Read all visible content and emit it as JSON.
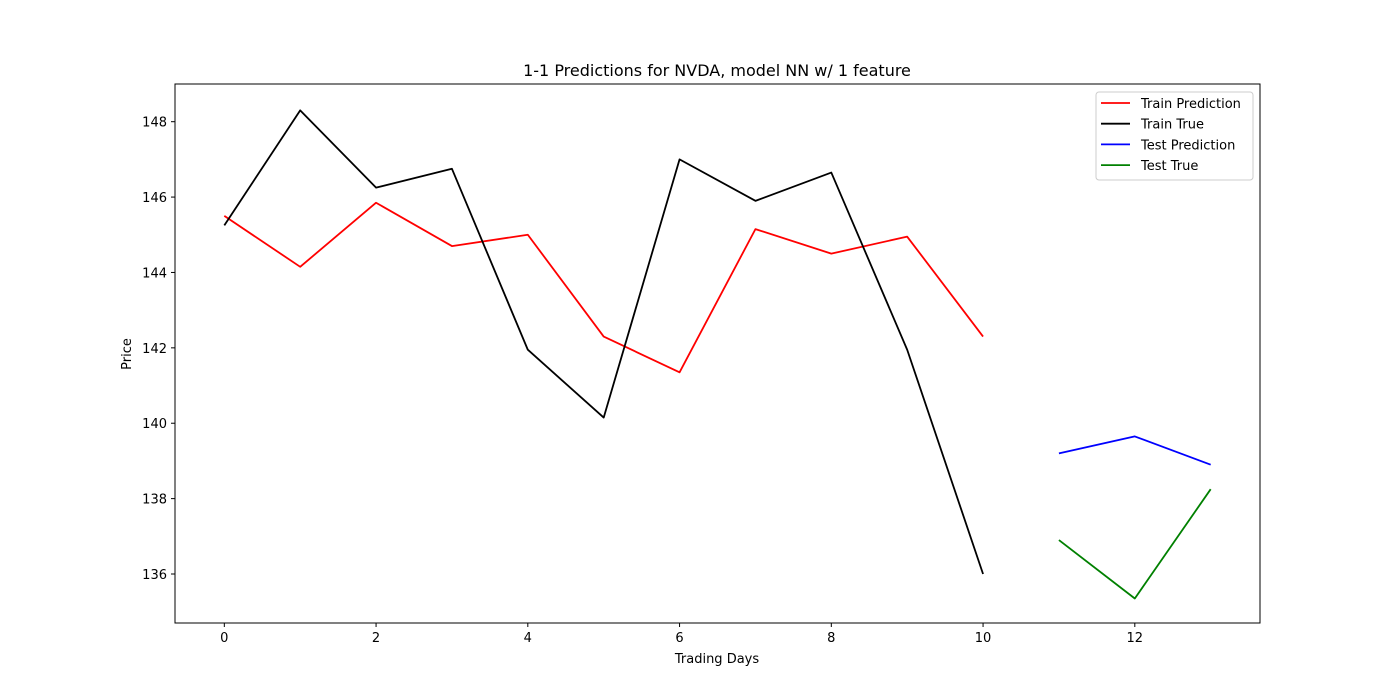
{
  "chart_data": {
    "type": "line",
    "title": "1-1 Predictions for NVDA, model NN w/ 1 feature",
    "xlabel": "Trading Days",
    "ylabel": "Price",
    "xlim": [
      -0.65,
      13.65
    ],
    "ylim": [
      134.7,
      149.0
    ],
    "xticks": [
      0,
      2,
      4,
      6,
      8,
      10,
      12
    ],
    "yticks": [
      136,
      138,
      140,
      142,
      144,
      146,
      148
    ],
    "grid": false,
    "legend_position": "top-right",
    "series": [
      {
        "name": "Train Prediction",
        "color": "#ff0000",
        "x": [
          0,
          1,
          2,
          3,
          4,
          5,
          6,
          7,
          8,
          9,
          10
        ],
        "y": [
          145.5,
          144.15,
          145.85,
          144.7,
          145.0,
          142.3,
          141.35,
          145.15,
          144.5,
          144.95,
          142.3
        ]
      },
      {
        "name": "Train True",
        "color": "#000000",
        "x": [
          0,
          1,
          2,
          3,
          4,
          5,
          6,
          7,
          8,
          9,
          10
        ],
        "y": [
          145.25,
          148.3,
          146.25,
          146.75,
          141.95,
          140.15,
          147.0,
          145.9,
          146.65,
          141.95,
          136.0
        ]
      },
      {
        "name": "Test Prediction",
        "color": "#0000ff",
        "x": [
          11,
          12,
          13
        ],
        "y": [
          139.2,
          139.65,
          138.9
        ]
      },
      {
        "name": "Test True",
        "color": "#008000",
        "x": [
          11,
          12,
          13
        ],
        "y": [
          136.9,
          135.35,
          138.25
        ]
      }
    ]
  }
}
